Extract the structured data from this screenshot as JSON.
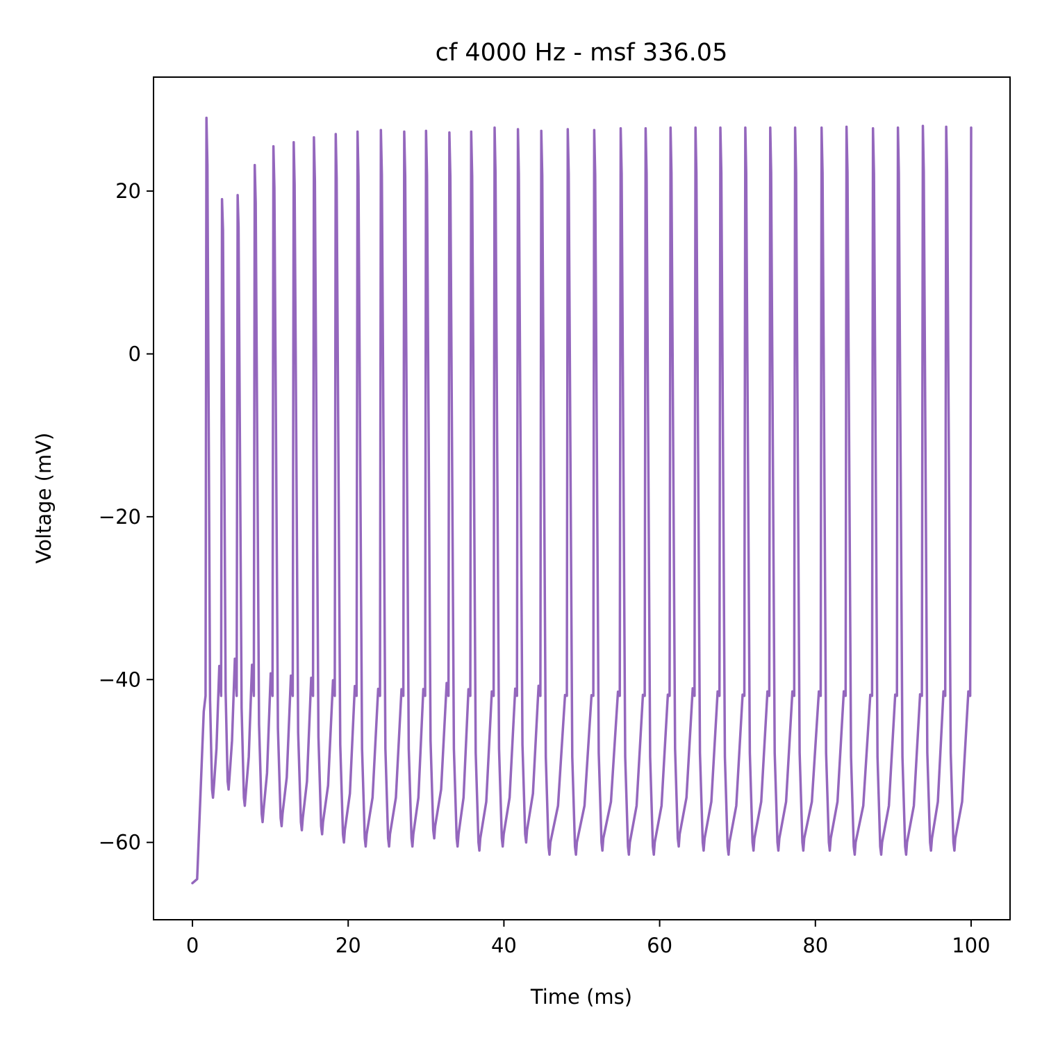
{
  "chart_data": {
    "type": "line",
    "title": "cf 4000 Hz - msf 336.05",
    "xlabel": "Time (ms)",
    "ylabel": "Voltage (mV)",
    "xlim": [
      -5,
      105
    ],
    "ylim": [
      -69.5,
      34
    ],
    "xticks": [
      0,
      20,
      40,
      60,
      80,
      100
    ],
    "yticks": [
      -60,
      -40,
      -20,
      0,
      20
    ],
    "xtick_labels": [
      "0",
      "20",
      "40",
      "60",
      "80",
      "100"
    ],
    "ytick_labels": [
      "−60",
      "−40",
      "−20",
      "0",
      "20"
    ],
    "grid": false,
    "series": [
      {
        "color": "#9467bd",
        "rest_start": [
          [
            0,
            -65
          ],
          [
            0.6,
            -64.5
          ]
        ],
        "spikes": [
          {
            "t": 1.8,
            "peak": 29.0,
            "trough": -54.5
          },
          {
            "t": 3.8,
            "peak": 19.0,
            "trough": -53.5
          },
          {
            "t": 5.8,
            "peak": 19.5,
            "trough": -55.5
          },
          {
            "t": 8.0,
            "peak": 23.2,
            "trough": -57.5
          },
          {
            "t": 10.4,
            "peak": 25.5,
            "trough": -58.0
          },
          {
            "t": 13.0,
            "peak": 26.0,
            "trough": -58.5
          },
          {
            "t": 15.6,
            "peak": 26.6,
            "trough": -59.0
          },
          {
            "t": 18.4,
            "peak": 27.0,
            "trough": -60.0
          },
          {
            "t": 21.2,
            "peak": 27.3,
            "trough": -60.5
          },
          {
            "t": 24.2,
            "peak": 27.5,
            "trough": -60.5
          },
          {
            "t": 27.2,
            "peak": 27.3,
            "trough": -60.5
          },
          {
            "t": 30.0,
            "peak": 27.4,
            "trough": -59.5
          },
          {
            "t": 33.0,
            "peak": 27.2,
            "trough": -60.5
          },
          {
            "t": 35.8,
            "peak": 27.3,
            "trough": -61.0
          },
          {
            "t": 38.8,
            "peak": 27.8,
            "trough": -60.5
          },
          {
            "t": 41.8,
            "peak": 27.6,
            "trough": -60.0
          },
          {
            "t": 44.8,
            "peak": 27.4,
            "trough": -61.5
          },
          {
            "t": 48.2,
            "peak": 27.6,
            "trough": -61.5
          },
          {
            "t": 51.6,
            "peak": 27.5,
            "trough": -61.0
          },
          {
            "t": 55.0,
            "peak": 27.7,
            "trough": -61.5
          },
          {
            "t": 58.2,
            "peak": 27.7,
            "trough": -61.5
          },
          {
            "t": 61.4,
            "peak": 27.8,
            "trough": -60.5
          },
          {
            "t": 64.6,
            "peak": 27.8,
            "trough": -61.0
          },
          {
            "t": 67.8,
            "peak": 27.8,
            "trough": -61.5
          },
          {
            "t": 71.0,
            "peak": 27.8,
            "trough": -61.0
          },
          {
            "t": 74.2,
            "peak": 27.8,
            "trough": -61.0
          },
          {
            "t": 77.4,
            "peak": 27.8,
            "trough": -61.0
          },
          {
            "t": 80.8,
            "peak": 27.8,
            "trough": -61.0
          },
          {
            "t": 84.0,
            "peak": 27.9,
            "trough": -61.5
          },
          {
            "t": 87.4,
            "peak": 27.7,
            "trough": -61.5
          },
          {
            "t": 90.6,
            "peak": 27.8,
            "trough": -61.5
          },
          {
            "t": 93.8,
            "peak": 28.0,
            "trough": -61.0
          },
          {
            "t": 96.8,
            "peak": 27.9,
            "trough": -61.0
          },
          {
            "t": 100.0,
            "peak": 27.8,
            "trough": null
          }
        ]
      }
    ]
  }
}
